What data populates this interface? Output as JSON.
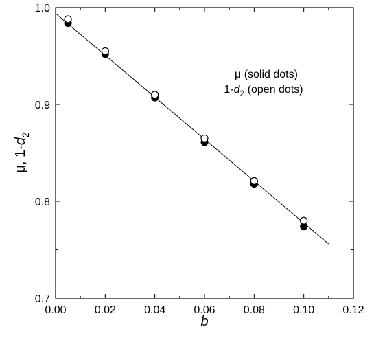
{
  "chart_data": {
    "type": "scatter",
    "xlim": [
      0.0,
      0.12
    ],
    "ylim": [
      0.7,
      1.0
    ],
    "x_ticks": [
      "0.00",
      "0.02",
      "0.04",
      "0.06",
      "0.08",
      "0.10",
      "0.12"
    ],
    "y_ticks": [
      "0.7",
      "0.8",
      "0.9",
      "1.0"
    ],
    "xlabel": "b",
    "ylabel": {
      "main": "μ, 1-",
      "italic": "d",
      "sub": "2"
    },
    "grid": false,
    "legend": {
      "placement": "top-right",
      "line1": "μ  (solid dots)",
      "line2": {
        "prefix": "1-",
        "italic": "d",
        "sub": "2",
        "suffix": " (open dots)"
      }
    },
    "series": [
      {
        "name": "μ",
        "marker": "solid-circle",
        "points": [
          [
            0.005,
            0.984
          ],
          [
            0.02,
            0.952
          ],
          [
            0.04,
            0.907
          ],
          [
            0.06,
            0.861
          ],
          [
            0.08,
            0.818
          ],
          [
            0.1,
            0.774
          ]
        ]
      },
      {
        "name": "1-d2",
        "marker": "open-circle",
        "points": [
          [
            0.005,
            0.988
          ],
          [
            0.02,
            0.955
          ],
          [
            0.04,
            0.91
          ],
          [
            0.06,
            0.865
          ],
          [
            0.08,
            0.821
          ],
          [
            0.1,
            0.78
          ]
        ]
      }
    ],
    "fit_line": {
      "points": [
        [
          0.0,
          0.994
        ],
        [
          0.11,
          0.756
        ]
      ]
    }
  }
}
